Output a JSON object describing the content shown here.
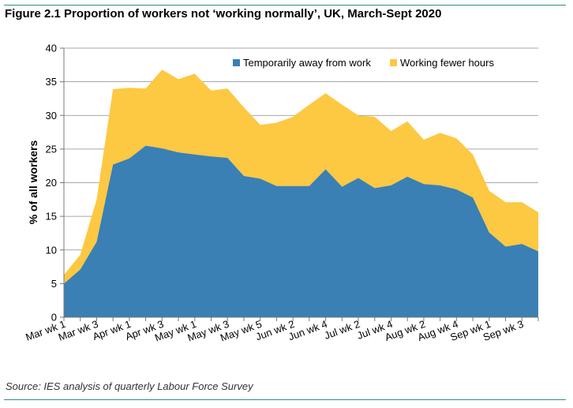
{
  "figure": {
    "title": "Figure 2.1 Proportion of workers not ‘working normally’, UK, March-Sept 2020",
    "source": "Source: IES analysis of quarterly Labour Force Survey",
    "rule_color": "#2e8b8b"
  },
  "chart_data": {
    "type": "area",
    "stacked": true,
    "title": "Figure 2.1 Proportion of workers not ‘working normally’, UK, March-Sept 2020",
    "xlabel": "",
    "ylabel": "% of all workers",
    "ylim": [
      0,
      40
    ],
    "yticks": [
      0,
      5,
      10,
      15,
      20,
      25,
      30,
      35,
      40
    ],
    "grid": true,
    "legend_position": "top-right",
    "x": [
      "Mar wk 1",
      "Mar wk 2",
      "Mar wk 3",
      "Mar wk 4",
      "Apr wk 1",
      "Apr wk 2",
      "Apr wk 3",
      "Apr wk 4",
      "May wk 1",
      "May wk 2",
      "May wk 3",
      "May wk 4",
      "May wk 5",
      "Jun wk 1",
      "Jun wk 2",
      "Jun wk 3",
      "Jun wk 4",
      "Jul wk 1",
      "Jul wk 2",
      "Jul wk 3",
      "Jul wk 4",
      "Aug wk 1",
      "Aug wk 2",
      "Aug wk 3",
      "Aug wk 4",
      "Aug wk 5",
      "Sep wk 1",
      "Sep wk 2",
      "Sep wk 3",
      "Sep wk 4"
    ],
    "x_tick_labels": [
      "Mar wk 1",
      "Mar wk 3",
      "Apr wk 1",
      "Apr wk 3",
      "May wk 1",
      "May wk 3",
      "May wk 5",
      "Jun wk 2",
      "Jun wk 4",
      "Jul wk 2",
      "Jul wk 4",
      "Aug wk 2",
      "Aug wk 4",
      "Sep wk 1",
      "Sep wk 3"
    ],
    "x_tick_indices": [
      0,
      2,
      4,
      6,
      8,
      10,
      12,
      14,
      16,
      18,
      20,
      22,
      24,
      26,
      28
    ],
    "series": [
      {
        "name": "Temporarily away from work",
        "color": "#3a80b4",
        "values": [
          5.0,
          7.1,
          11.2,
          22.7,
          23.6,
          25.5,
          25.1,
          24.5,
          24.2,
          23.9,
          23.7,
          21.0,
          20.6,
          19.5,
          19.5,
          19.5,
          22.0,
          19.4,
          20.7,
          19.2,
          19.6,
          20.9,
          19.8,
          19.6,
          19.0,
          17.8,
          12.6,
          10.5,
          10.9,
          9.8
        ]
      },
      {
        "name": "Working fewer hours",
        "color": "#fdc842",
        "values": [
          1.3,
          2.2,
          6.3,
          11.2,
          10.5,
          8.5,
          11.7,
          10.9,
          12.0,
          9.8,
          10.3,
          10.2,
          8.0,
          9.4,
          10.3,
          12.1,
          11.3,
          12.2,
          9.3,
          10.6,
          8.1,
          8.2,
          6.6,
          7.8,
          7.6,
          6.4,
          6.2,
          6.6,
          6.2,
          5.8
        ]
      }
    ]
  }
}
